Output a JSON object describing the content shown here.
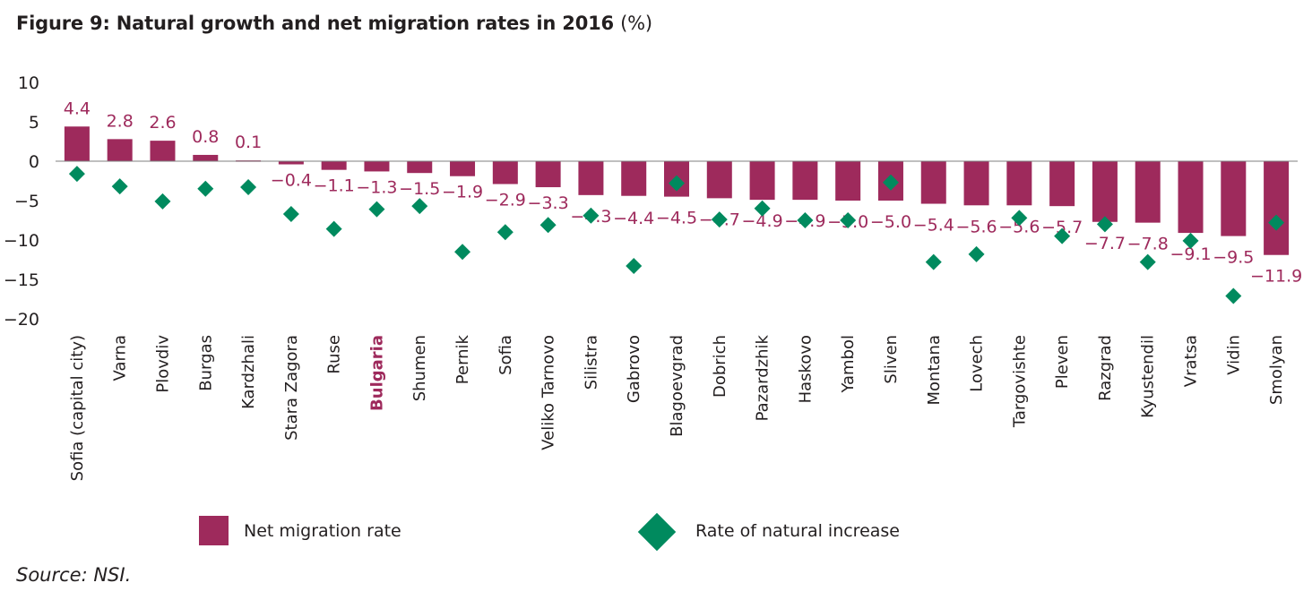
{
  "title": "Figure 9: Natural growth and net migration rates in 2016",
  "title_unit": "(%)",
  "source": "Source: NSI.",
  "colors": {
    "bar": "#9e2a5c",
    "diamond": "#008a5e",
    "highlight_label": "#9e2a5c",
    "label": "#9e2a5c"
  },
  "chart_data": {
    "type": "bar",
    "categories": [
      "Sofia (capital city)",
      "Varna",
      "Plovdiv",
      "Burgas",
      "Kardzhali",
      "Stara Zagora",
      "Ruse",
      "Bulgaria",
      "Shumen",
      "Pernik",
      "Sofia",
      "Veliko Tarnovo",
      "Silistra",
      "Gabrovo",
      "Blagoevgrad",
      "Dobrich",
      "Pazardzhik",
      "Haskovo",
      "Yambol",
      "Sliven",
      "Montana",
      "Lovech",
      "Targovishte",
      "Pleven",
      "Razgrad",
      "Kyustendil",
      "Vratsa",
      "Vidin",
      "Smolyan"
    ],
    "highlight_category": "Bulgaria",
    "series": [
      {
        "name": "Net migration rate",
        "kind": "bar",
        "values": [
          4.4,
          2.8,
          2.6,
          0.8,
          0.1,
          -0.4,
          -1.1,
          -1.3,
          -1.5,
          -1.9,
          -2.9,
          -3.3,
          -4.3,
          -4.4,
          -4.5,
          -4.7,
          -4.9,
          -4.9,
          -5.0,
          -5.0,
          -5.4,
          -5.6,
          -5.6,
          -5.7,
          -7.7,
          -7.8,
          -9.1,
          -9.5,
          -11.9
        ],
        "labels": [
          "4.4",
          "2.8",
          "2.6",
          "0.8",
          "0.1",
          "−0.4",
          "−1.1",
          "−1.3",
          "−1.5",
          "−1.9",
          "−2.9",
          "−3.3",
          "−4.3",
          "−4.4",
          "−4.5",
          "−4.7",
          "−4.9",
          "−4.9",
          "−5.0",
          "−5.0",
          "−5.4",
          "−5.6",
          "−5.6",
          "−5.7",
          "−7.7",
          "−7.8",
          "−9.1",
          "−9.5",
          "−11.9"
        ]
      },
      {
        "name": "Rate of natural increase",
        "kind": "scatter",
        "values": [
          -1.6,
          -3.2,
          -5.1,
          -3.5,
          -3.3,
          -6.7,
          -8.6,
          -6.1,
          -5.7,
          -11.5,
          -9.0,
          -8.1,
          -6.9,
          -13.3,
          -2.8,
          -7.4,
          -6.0,
          -7.5,
          -7.5,
          -2.7,
          -12.8,
          -11.8,
          -7.2,
          -9.5,
          -8.0,
          -12.8,
          -10.1,
          -17.1,
          -7.8
        ]
      }
    ],
    "ylim": [
      -20,
      10
    ],
    "yticks": [
      10,
      5,
      0,
      -5,
      -10,
      -15,
      -20
    ],
    "ytick_labels": [
      "10",
      "5",
      "0",
      "−5",
      "−10",
      "−15",
      "−20"
    ],
    "xlabel": "",
    "ylabel": "",
    "grid": false,
    "legend": "bottom"
  }
}
